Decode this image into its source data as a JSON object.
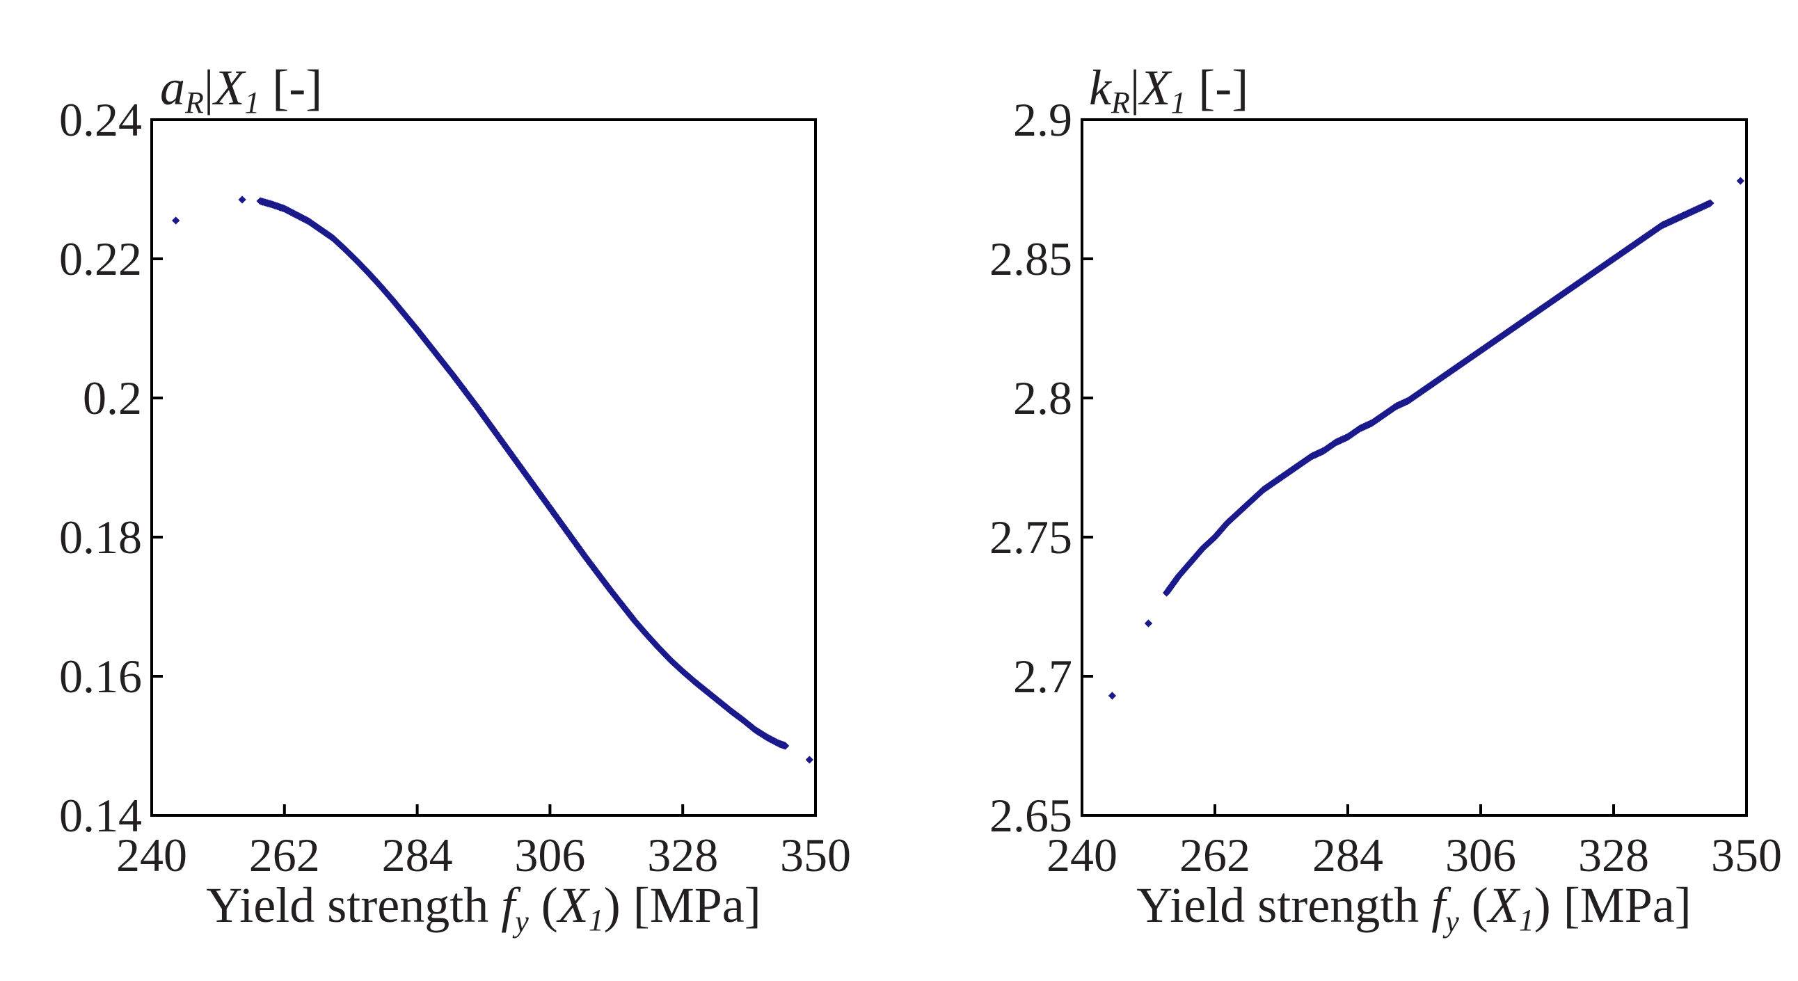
{
  "chart_data": [
    {
      "type": "scatter",
      "title": "",
      "ylabel": {
        "var": "a",
        "var_sub": "R",
        "cond": "X",
        "cond_sub": "1",
        "unit": "[-]"
      },
      "xlabel": {
        "prefix": "Yield strength ",
        "var": "f",
        "var_sub": "y",
        "paren_open": " (",
        "arg": "X",
        "arg_sub": "1",
        "paren_close": ")",
        "unit": " [MPa]"
      },
      "xlim": [
        240,
        350
      ],
      "ylim": [
        0.14,
        0.24
      ],
      "xticks": [
        240,
        262,
        284,
        306,
        328,
        350
      ],
      "xtick_labels": [
        "240",
        "262",
        "284",
        "306",
        "328",
        "350"
      ],
      "yticks": [
        0.14,
        0.16,
        0.18,
        0.2,
        0.22,
        0.24
      ],
      "ytick_labels": [
        "0.14",
        "0.16",
        "0.18",
        "0.2",
        "0.22",
        "0.24"
      ],
      "grid": false,
      "marker_color": "#1a1a8c",
      "series": [
        {
          "name": "aR|X1",
          "points": [
            [
              244,
              0.2255
            ],
            [
              255,
              0.2285
            ],
            [
              258,
              0.2283
            ],
            [
              260,
              0.2278
            ],
            [
              262,
              0.2272
            ],
            [
              264,
              0.2263
            ],
            [
              266,
              0.2254
            ],
            [
              268,
              0.2242
            ],
            [
              270,
              0.223
            ],
            [
              272,
              0.2214
            ],
            [
              274,
              0.2197
            ],
            [
              276,
              0.2179
            ],
            [
              278,
              0.216
            ],
            [
              280,
              0.214
            ],
            [
              282,
              0.2119
            ],
            [
              284,
              0.2098
            ],
            [
              286,
              0.2076
            ],
            [
              288,
              0.2054
            ],
            [
              290,
              0.2032
            ],
            [
              292,
              0.2009
            ],
            [
              294,
              0.1986
            ],
            [
              296,
              0.1962
            ],
            [
              298,
              0.1938
            ],
            [
              300,
              0.1914
            ],
            [
              302,
              0.189
            ],
            [
              304,
              0.1866
            ],
            [
              306,
              0.1842
            ],
            [
              308,
              0.1818
            ],
            [
              310,
              0.1794
            ],
            [
              312,
              0.177
            ],
            [
              314,
              0.1747
            ],
            [
              316,
              0.1724
            ],
            [
              318,
              0.1702
            ],
            [
              320,
              0.168
            ],
            [
              322,
              0.166
            ],
            [
              324,
              0.1641
            ],
            [
              326,
              0.1623
            ],
            [
              328,
              0.1607
            ],
            [
              330,
              0.1592
            ],
            [
              332,
              0.1578
            ],
            [
              334,
              0.1564
            ],
            [
              336,
              0.155
            ],
            [
              338,
              0.1537
            ],
            [
              340,
              0.1523
            ],
            [
              342,
              0.1512
            ],
            [
              344,
              0.1503
            ],
            [
              345,
              0.15
            ],
            [
              349,
              0.148
            ]
          ]
        }
      ]
    },
    {
      "type": "scatter",
      "title": "",
      "ylabel": {
        "var": "k",
        "var_sub": "R",
        "cond": "X",
        "cond_sub": "1",
        "unit": "[-]"
      },
      "xlabel": {
        "prefix": "Yield strength ",
        "var": "f",
        "var_sub": "y",
        "paren_open": " (",
        "arg": "X",
        "arg_sub": "1",
        "paren_close": ")",
        "unit": " [MPa]"
      },
      "xlim": [
        240,
        350
      ],
      "ylim": [
        2.65,
        2.9
      ],
      "xticks": [
        240,
        262,
        284,
        306,
        328,
        350
      ],
      "xtick_labels": [
        "240",
        "262",
        "284",
        "306",
        "328",
        "350"
      ],
      "yticks": [
        2.65,
        2.7,
        2.75,
        2.8,
        2.85,
        2.9
      ],
      "ytick_labels": [
        "2.65",
        "2.7",
        "2.75",
        "2.8",
        "2.85",
        "2.9"
      ],
      "grid": false,
      "marker_color": "#1a1a8c",
      "series": [
        {
          "name": "kR|X1",
          "points": [
            [
              245,
              2.693
            ],
            [
              251,
              2.719
            ],
            [
              254,
              2.73
            ],
            [
              256,
              2.736
            ],
            [
              258,
              2.741
            ],
            [
              260,
              2.746
            ],
            [
              262,
              2.75
            ],
            [
              264,
              2.755
            ],
            [
              266,
              2.759
            ],
            [
              268,
              2.763
            ],
            [
              270,
              2.767
            ],
            [
              272,
              2.77
            ],
            [
              274,
              2.773
            ],
            [
              276,
              2.776
            ],
            [
              278,
              2.779
            ],
            [
              280,
              2.781
            ],
            [
              282,
              2.784
            ],
            [
              284,
              2.786
            ],
            [
              286,
              2.789
            ],
            [
              288,
              2.791
            ],
            [
              290,
              2.794
            ],
            [
              292,
              2.797
            ],
            [
              294,
              2.799
            ],
            [
              296,
              2.802
            ],
            [
              298,
              2.805
            ],
            [
              300,
              2.808
            ],
            [
              302,
              2.811
            ],
            [
              304,
              2.814
            ],
            [
              306,
              2.817
            ],
            [
              308,
              2.82
            ],
            [
              310,
              2.823
            ],
            [
              312,
              2.826
            ],
            [
              314,
              2.829
            ],
            [
              316,
              2.832
            ],
            [
              318,
              2.835
            ],
            [
              320,
              2.838
            ],
            [
              322,
              2.841
            ],
            [
              324,
              2.844
            ],
            [
              326,
              2.847
            ],
            [
              328,
              2.85
            ],
            [
              330,
              2.853
            ],
            [
              332,
              2.856
            ],
            [
              334,
              2.859
            ],
            [
              336,
              2.862
            ],
            [
              338,
              2.864
            ],
            [
              340,
              2.866
            ],
            [
              342,
              2.868
            ],
            [
              344,
              2.87
            ],
            [
              349,
              2.878
            ]
          ]
        }
      ]
    }
  ]
}
